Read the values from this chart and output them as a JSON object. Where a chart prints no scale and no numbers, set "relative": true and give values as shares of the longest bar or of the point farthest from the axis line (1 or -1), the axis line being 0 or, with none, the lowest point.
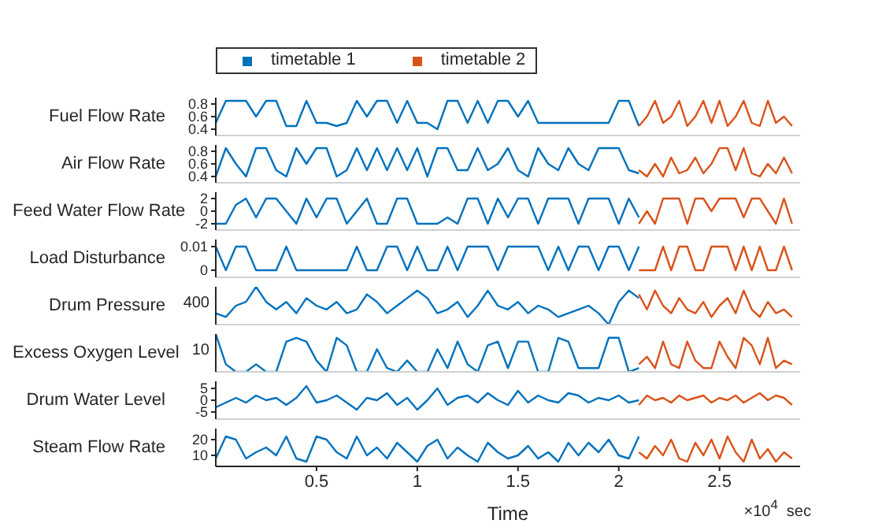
{
  "chart_data": [
    {
      "type": "line",
      "ylabel": "Fuel Flow Rate",
      "legend": "top",
      "tick_labels": "y",
      "xlim": [
        0,
        2.9
      ],
      "xticks": [
        0.5,
        1,
        1.5,
        2,
        2.5
      ],
      "ylim": [
        0.3,
        0.9
      ],
      "yticks": [
        0.4,
        0.6,
        0.8
      ],
      "series": [
        {
          "name": "timetable 1",
          "color": "#0072bd",
          "x": [
            0,
            0.05,
            0.1,
            0.15,
            0.2,
            0.25,
            0.3,
            0.35,
            0.4,
            0.45,
            0.5,
            0.55,
            0.6,
            0.65,
            0.7,
            0.75,
            0.8,
            0.85,
            0.9,
            0.95,
            1,
            1.05,
            1.1,
            1.15,
            1.2,
            1.25,
            1.3,
            1.35,
            1.4,
            1.45,
            1.5,
            1.55,
            1.6,
            1.65,
            1.7,
            1.75,
            1.8,
            1.85,
            1.9,
            1.95,
            2,
            2.05,
            2.1
          ],
          "values": [
            0.5,
            0.85,
            0.85,
            0.85,
            0.6,
            0.85,
            0.85,
            0.45,
            0.45,
            0.85,
            0.5,
            0.5,
            0.45,
            0.5,
            0.85,
            0.6,
            0.85,
            0.85,
            0.5,
            0.85,
            0.5,
            0.5,
            0.4,
            0.85,
            0.85,
            0.5,
            0.85,
            0.5,
            0.85,
            0.85,
            0.6,
            0.85,
            0.5,
            0.5,
            0.5,
            0.5,
            0.5,
            0.5,
            0.5,
            0.5,
            0.85,
            0.85,
            0.45
          ]
        },
        {
          "name": "timetable 2",
          "color": "#d95319",
          "x": [
            2.1,
            2.14,
            2.18,
            2.22,
            2.26,
            2.3,
            2.34,
            2.38,
            2.42,
            2.46,
            2.5,
            2.54,
            2.58,
            2.62,
            2.66,
            2.7,
            2.74,
            2.78,
            2.82,
            2.86
          ],
          "values": [
            0.45,
            0.6,
            0.85,
            0.5,
            0.6,
            0.85,
            0.45,
            0.6,
            0.85,
            0.5,
            0.85,
            0.45,
            0.6,
            0.85,
            0.5,
            0.45,
            0.85,
            0.5,
            0.6,
            0.45
          ]
        }
      ]
    },
    {
      "type": "line",
      "ylabel": "Air Flow Rate",
      "tick_labels": "y",
      "xlim": [
        0,
        2.9
      ],
      "xticks": [
        0.5,
        1,
        1.5,
        2,
        2.5
      ],
      "ylim": [
        0.3,
        0.9
      ],
      "yticks": [
        0.4,
        0.6,
        0.8
      ],
      "series": [
        {
          "color": "#0072bd",
          "x": [
            0,
            0.05,
            0.1,
            0.15,
            0.2,
            0.25,
            0.3,
            0.35,
            0.4,
            0.45,
            0.5,
            0.55,
            0.6,
            0.65,
            0.7,
            0.75,
            0.8,
            0.85,
            0.9,
            0.95,
            1,
            1.05,
            1.1,
            1.15,
            1.2,
            1.25,
            1.3,
            1.35,
            1.4,
            1.45,
            1.5,
            1.55,
            1.6,
            1.65,
            1.7,
            1.75,
            1.8,
            1.85,
            1.9,
            1.95,
            2,
            2.05,
            2.1
          ],
          "values": [
            0.4,
            0.85,
            0.6,
            0.4,
            0.85,
            0.85,
            0.5,
            0.4,
            0.85,
            0.6,
            0.85,
            0.85,
            0.4,
            0.5,
            0.85,
            0.5,
            0.85,
            0.5,
            0.85,
            0.5,
            0.85,
            0.4,
            0.85,
            0.85,
            0.5,
            0.5,
            0.85,
            0.5,
            0.6,
            0.85,
            0.5,
            0.4,
            0.85,
            0.6,
            0.5,
            0.85,
            0.6,
            0.5,
            0.85,
            0.85,
            0.85,
            0.5,
            0.45
          ]
        },
        {
          "color": "#d95319",
          "x": [
            2.1,
            2.14,
            2.18,
            2.22,
            2.26,
            2.3,
            2.34,
            2.38,
            2.42,
            2.46,
            2.5,
            2.54,
            2.58,
            2.62,
            2.66,
            2.7,
            2.74,
            2.78,
            2.82,
            2.86
          ],
          "values": [
            0.5,
            0.4,
            0.6,
            0.4,
            0.7,
            0.45,
            0.5,
            0.7,
            0.45,
            0.6,
            0.85,
            0.85,
            0.5,
            0.85,
            0.45,
            0.4,
            0.6,
            0.45,
            0.7,
            0.45
          ]
        }
      ]
    },
    {
      "type": "line",
      "ylabel": "Feed Water Flow Rate",
      "tick_labels": "y",
      "xlim": [
        0,
        2.9
      ],
      "xticks": [
        0.5,
        1,
        1.5,
        2,
        2.5
      ],
      "ylim": [
        -3,
        3
      ],
      "yticks": [
        -2,
        0,
        2
      ],
      "series": [
        {
          "color": "#0072bd",
          "x": [
            0,
            0.05,
            0.1,
            0.15,
            0.2,
            0.25,
            0.3,
            0.35,
            0.4,
            0.45,
            0.5,
            0.55,
            0.6,
            0.65,
            0.7,
            0.75,
            0.8,
            0.85,
            0.9,
            0.95,
            1,
            1.05,
            1.1,
            1.15,
            1.2,
            1.25,
            1.3,
            1.35,
            1.4,
            1.45,
            1.5,
            1.55,
            1.6,
            1.65,
            1.7,
            1.75,
            1.8,
            1.85,
            1.9,
            1.95,
            2,
            2.05,
            2.1
          ],
          "values": [
            -2,
            -2,
            1,
            2,
            -1,
            2,
            2,
            0,
            -2,
            2,
            -1,
            2,
            2,
            -2,
            0,
            2,
            -2,
            -2,
            2,
            2,
            -2,
            -2,
            -2,
            -1,
            -2,
            2,
            2,
            -2,
            2,
            -1,
            2,
            2,
            -2,
            2,
            2,
            2,
            -2,
            2,
            2,
            2,
            -2,
            2,
            -1
          ]
        },
        {
          "color": "#d95319",
          "x": [
            2.1,
            2.14,
            2.18,
            2.22,
            2.26,
            2.3,
            2.34,
            2.38,
            2.42,
            2.46,
            2.5,
            2.54,
            2.58,
            2.62,
            2.66,
            2.7,
            2.74,
            2.78,
            2.82,
            2.86
          ],
          "values": [
            -2,
            0,
            -2,
            2,
            2,
            2,
            -2,
            2,
            2,
            0,
            2,
            2,
            2,
            -1,
            2,
            2,
            0,
            -2,
            2,
            -2
          ]
        }
      ]
    },
    {
      "type": "line",
      "ylabel": "Load Disturbance",
      "tick_labels": "y",
      "xlim": [
        0,
        2.9
      ],
      "xticks": [
        0.5,
        1,
        1.5,
        2,
        2.5
      ],
      "ylim": [
        -0.003,
        0.013
      ],
      "yticks": [
        0,
        0.01
      ],
      "series": [
        {
          "color": "#0072bd",
          "x": [
            0,
            0.05,
            0.1,
            0.15,
            0.2,
            0.25,
            0.3,
            0.35,
            0.4,
            0.45,
            0.5,
            0.55,
            0.6,
            0.65,
            0.7,
            0.75,
            0.8,
            0.85,
            0.9,
            0.95,
            1,
            1.05,
            1.1,
            1.15,
            1.2,
            1.25,
            1.3,
            1.35,
            1.4,
            1.45,
            1.5,
            1.55,
            1.6,
            1.65,
            1.7,
            1.75,
            1.8,
            1.85,
            1.9,
            1.95,
            2,
            2.05,
            2.1
          ],
          "values": [
            0.01,
            0,
            0.01,
            0.01,
            0,
            0,
            0,
            0.01,
            0,
            0,
            0,
            0,
            0,
            0,
            0.01,
            0,
            0,
            0.01,
            0.01,
            0,
            0.01,
            0,
            0,
            0.01,
            0,
            0.01,
            0.01,
            0.01,
            0,
            0.01,
            0.01,
            0.01,
            0.01,
            0,
            0.01,
            0,
            0.01,
            0.01,
            0,
            0.01,
            0.01,
            0,
            0.01
          ]
        },
        {
          "color": "#d95319",
          "x": [
            2.1,
            2.14,
            2.18,
            2.22,
            2.26,
            2.3,
            2.34,
            2.38,
            2.42,
            2.46,
            2.5,
            2.54,
            2.58,
            2.62,
            2.66,
            2.7,
            2.74,
            2.78,
            2.82,
            2.86
          ],
          "values": [
            0,
            0,
            0,
            0.01,
            0,
            0.01,
            0.01,
            0,
            0,
            0.01,
            0.01,
            0.01,
            0,
            0.01,
            0,
            0.01,
            0,
            0,
            0.01,
            0
          ]
        }
      ]
    },
    {
      "type": "line",
      "ylabel": "Drum Pressure",
      "relative": true,
      "tick_labels": "y",
      "xlim": [
        0,
        2.9
      ],
      "xticks": [
        0.5,
        1,
        1.5,
        2,
        2.5
      ],
      "annotations": [
        "400"
      ],
      "series": [
        {
          "color": "#0072bd",
          "x": [
            0,
            0.05,
            0.1,
            0.15,
            0.2,
            0.25,
            0.3,
            0.35,
            0.4,
            0.45,
            0.5,
            0.55,
            0.6,
            0.65,
            0.7,
            0.75,
            0.8,
            0.85,
            0.9,
            0.95,
            1,
            1.05,
            1.1,
            1.15,
            1.2,
            1.25,
            1.3,
            1.35,
            1.4,
            1.45,
            1.5,
            1.55,
            1.6,
            1.65,
            1.7,
            1.75,
            1.8,
            1.85,
            1.9,
            1.95,
            2,
            2.05,
            2.1
          ],
          "values": [
            0.3,
            0.2,
            0.5,
            0.6,
            1,
            0.6,
            0.4,
            0.6,
            0.3,
            0.7,
            0.5,
            0.4,
            0.6,
            0.3,
            0.4,
            0.8,
            0.6,
            0.3,
            0.5,
            0.7,
            0.9,
            0.7,
            0.3,
            0.4,
            0.6,
            0.2,
            0.5,
            0.9,
            0.5,
            0.4,
            0.6,
            0.3,
            0.5,
            0.4,
            0.2,
            0.3,
            0.4,
            0.5,
            0.3,
            0,
            0.6,
            0.9,
            0.7
          ]
        },
        {
          "color": "#d95319",
          "x": [
            2.1,
            2.14,
            2.18,
            2.22,
            2.26,
            2.3,
            2.34,
            2.38,
            2.42,
            2.46,
            2.5,
            2.54,
            2.58,
            2.62,
            2.66,
            2.7,
            2.74,
            2.78,
            2.82,
            2.86
          ],
          "values": [
            0.8,
            0.4,
            0.9,
            0.5,
            0.3,
            0.7,
            0.4,
            0.3,
            0.6,
            0.2,
            0.5,
            0.7,
            0.3,
            0.9,
            0.4,
            0.2,
            0.6,
            0.3,
            0.4,
            0.2
          ]
        }
      ]
    },
    {
      "type": "line",
      "ylabel": "Excess Oxygen Level",
      "relative": true,
      "tick_labels": "y",
      "xlim": [
        0,
        2.9
      ],
      "xticks": [
        0.5,
        1,
        1.5,
        2,
        2.5
      ],
      "annotations": [
        "10"
      ],
      "series": [
        {
          "color": "#0072bd",
          "x": [
            0,
            0.05,
            0.1,
            0.15,
            0.2,
            0.25,
            0.3,
            0.35,
            0.4,
            0.45,
            0.5,
            0.55,
            0.6,
            0.65,
            0.7,
            0.75,
            0.8,
            0.85,
            0.9,
            0.95,
            1,
            1.05,
            1.1,
            1.15,
            1.2,
            1.25,
            1.3,
            1.35,
            1.4,
            1.45,
            1.5,
            1.55,
            1.6,
            1.65,
            1.7,
            1.75,
            1.8,
            1.85,
            1.9,
            1.95,
            2,
            2.05,
            2.1
          ],
          "values": [
            1,
            0.2,
            0,
            0,
            0.2,
            0,
            0,
            0.8,
            0.9,
            0.8,
            0.3,
            0,
            0.9,
            0.7,
            0,
            0,
            0.6,
            0.1,
            0,
            0.3,
            0,
            0,
            0.6,
            0.1,
            0.8,
            0.2,
            0,
            0.7,
            0.8,
            0.1,
            0.8,
            0.8,
            0,
            0,
            0.9,
            0.8,
            0.1,
            0.1,
            0.1,
            0.9,
            0.9,
            0,
            0.1
          ]
        },
        {
          "color": "#d95319",
          "x": [
            2.1,
            2.14,
            2.18,
            2.22,
            2.26,
            2.3,
            2.34,
            2.38,
            2.42,
            2.46,
            2.5,
            2.54,
            2.58,
            2.62,
            2.66,
            2.7,
            2.74,
            2.78,
            2.82,
            2.86
          ],
          "values": [
            0.2,
            0.4,
            0.1,
            0.8,
            0.2,
            0.1,
            0.8,
            0.3,
            0.1,
            0.1,
            0.8,
            0.4,
            0.1,
            0.9,
            0.7,
            0.2,
            0.9,
            0.1,
            0.3,
            0.2
          ]
        }
      ]
    },
    {
      "type": "line",
      "ylabel": "Drum Water Level",
      "tick_labels": "y",
      "xlim": [
        0,
        2.9
      ],
      "xticks": [
        0.5,
        1,
        1.5,
        2,
        2.5
      ],
      "ylim": [
        -8,
        8
      ],
      "yticks": [
        -5,
        0,
        5
      ],
      "series": [
        {
          "color": "#0072bd",
          "x": [
            0,
            0.05,
            0.1,
            0.15,
            0.2,
            0.25,
            0.3,
            0.35,
            0.4,
            0.45,
            0.5,
            0.55,
            0.6,
            0.65,
            0.7,
            0.75,
            0.8,
            0.85,
            0.9,
            0.95,
            1,
            1.05,
            1.1,
            1.15,
            1.2,
            1.25,
            1.3,
            1.35,
            1.4,
            1.45,
            1.5,
            1.55,
            1.6,
            1.65,
            1.7,
            1.75,
            1.8,
            1.85,
            1.9,
            1.95,
            2,
            2.05,
            2.1
          ],
          "values": [
            -3,
            -1,
            1,
            -1,
            2,
            0,
            1,
            -2,
            1,
            6,
            -1,
            0,
            2,
            -1,
            -4,
            1,
            0,
            3,
            -2,
            1,
            -4,
            0,
            5,
            -2,
            1,
            2,
            -1,
            3,
            0,
            -2,
            4,
            -1,
            2,
            0,
            -1,
            3,
            2,
            -1,
            1,
            0,
            2,
            -1,
            0
          ]
        },
        {
          "color": "#d95319",
          "x": [
            2.1,
            2.14,
            2.18,
            2.22,
            2.26,
            2.3,
            2.34,
            2.38,
            2.42,
            2.46,
            2.5,
            2.54,
            2.58,
            2.62,
            2.66,
            2.7,
            2.74,
            2.78,
            2.82,
            2.86
          ],
          "values": [
            -2,
            2,
            0,
            1,
            -1,
            2,
            0,
            1,
            2,
            -1,
            1,
            0,
            2,
            -1,
            1,
            3,
            0,
            2,
            1,
            -2
          ]
        }
      ]
    },
    {
      "type": "line",
      "ylabel": "Steam Flow Rate",
      "xlabel": "Time",
      "xlim": [
        0,
        2.9
      ],
      "xticks": [
        0.5,
        1,
        1.5,
        2,
        2.5
      ],
      "ylim": [
        3,
        27
      ],
      "yticks": [
        10,
        20
      ],
      "annotations": [
        "×10$^{4}$  sec"
      ],
      "series": [
        {
          "color": "#0072bd",
          "x": [
            0,
            0.05,
            0.1,
            0.15,
            0.2,
            0.25,
            0.3,
            0.35,
            0.4,
            0.45,
            0.5,
            0.55,
            0.6,
            0.65,
            0.7,
            0.75,
            0.8,
            0.85,
            0.9,
            0.95,
            1,
            1.05,
            1.1,
            1.15,
            1.2,
            1.25,
            1.3,
            1.35,
            1.4,
            1.45,
            1.5,
            1.55,
            1.6,
            1.65,
            1.7,
            1.75,
            1.8,
            1.85,
            1.9,
            1.95,
            2,
            2.05,
            2.1
          ],
          "values": [
            8,
            22,
            20,
            8,
            12,
            15,
            10,
            22,
            8,
            6,
            22,
            20,
            12,
            8,
            22,
            10,
            15,
            8,
            18,
            12,
            6,
            16,
            20,
            8,
            15,
            10,
            6,
            18,
            12,
            8,
            10,
            16,
            8,
            12,
            6,
            18,
            10,
            18,
            12,
            20,
            10,
            8,
            22
          ]
        },
        {
          "color": "#d95319",
          "x": [
            2.1,
            2.14,
            2.18,
            2.22,
            2.26,
            2.3,
            2.34,
            2.38,
            2.42,
            2.46,
            2.5,
            2.54,
            2.58,
            2.62,
            2.66,
            2.7,
            2.74,
            2.78,
            2.82,
            2.86
          ],
          "values": [
            12,
            8,
            16,
            10,
            20,
            8,
            6,
            18,
            10,
            20,
            8,
            22,
            12,
            6,
            20,
            8,
            14,
            6,
            12,
            8
          ]
        }
      ]
    }
  ]
}
